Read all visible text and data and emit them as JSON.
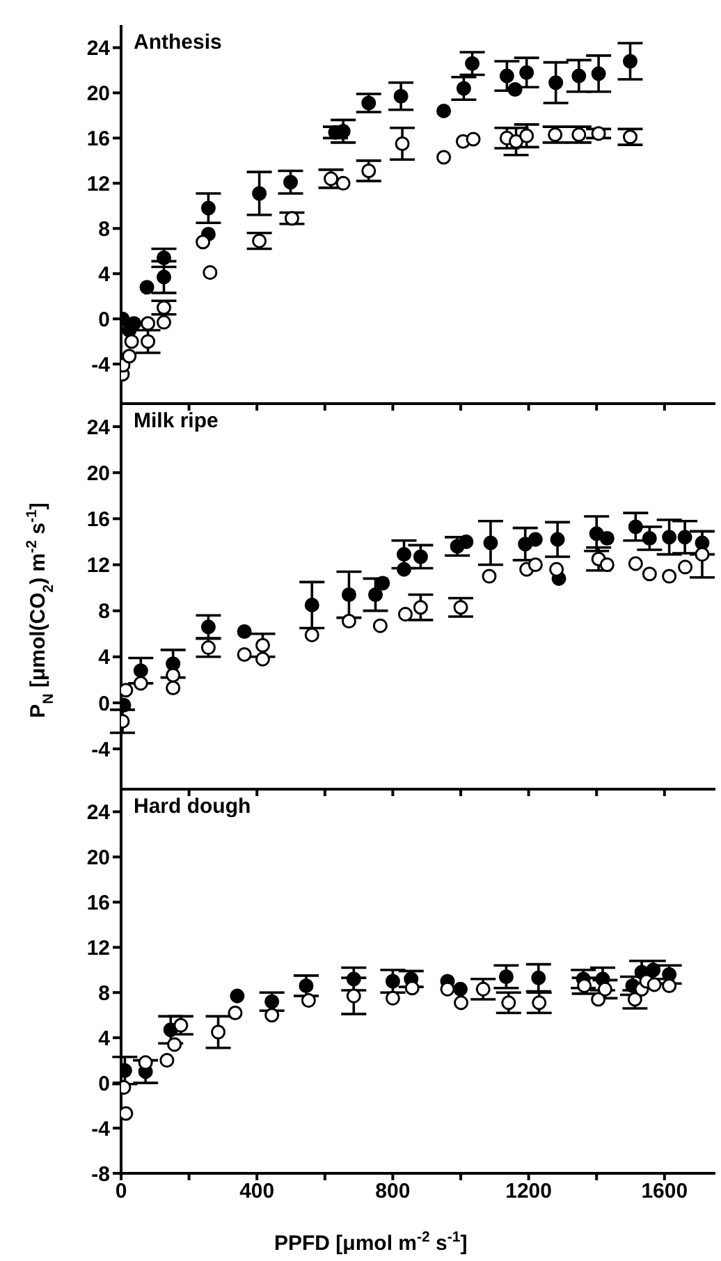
{
  "chart_data": [
    {
      "type": "scatter",
      "title": "Anthesis",
      "marker": "circle",
      "tick_labels": "y",
      "xlim": [
        0,
        1750
      ],
      "xticks": [
        0,
        {
          "value": 200,
          "label": null
        },
        {
          "value": 400,
          "label": null
        },
        {
          "value": 600,
          "label": null
        },
        {
          "value": 800,
          "label": null
        },
        {
          "value": 1000,
          "label": null
        },
        {
          "value": 1200,
          "label": null
        },
        {
          "value": 1400,
          "label": null
        },
        {
          "value": 1600,
          "label": null
        }
      ],
      "ylim": [
        -7.5,
        26
      ],
      "yticks": [
        -4,
        0,
        4,
        8,
        12,
        16,
        20,
        24
      ],
      "series": [
        {
          "color": "#000000",
          "x": [
            4,
            24,
            38,
            76,
            126,
            126,
            257,
            257,
            407,
            499,
            631,
            654,
            729,
            824,
            950,
            1009,
            1034,
            1136,
            1160,
            1194,
            1280,
            1348,
            1406,
            1499
          ],
          "values": [
            0,
            -1,
            -0.4,
            2.8,
            3.7,
            5.4,
            9.8,
            7.5,
            11.1,
            12.1,
            16.5,
            16.6,
            19.1,
            19.7,
            18.4,
            20.4,
            22.6,
            21.5,
            20.3,
            21.8,
            20.9,
            21.5,
            21.7,
            22.8
          ],
          "errors": [
            null,
            null,
            null,
            null,
            1.4,
            0.8,
            1.3,
            null,
            1.9,
            1,
            0.5,
            1,
            0.8,
            1.2,
            null,
            1,
            1,
            1.3,
            null,
            1.3,
            1.8,
            1.4,
            1.6,
            1.6
          ]
        },
        {
          "color": "#ffffff",
          "x": [
            4,
            6,
            24,
            31,
            79,
            79,
            126,
            126,
            241,
            262,
            407,
            503,
            618,
            654,
            729,
            828,
            950,
            1007,
            1037,
            1136,
            1163,
            1194,
            1278,
            1348,
            1406,
            1499
          ],
          "values": [
            -4.9,
            -4.1,
            -3.3,
            -2,
            -2,
            -0.4,
            -0.3,
            1,
            6.8,
            4.1,
            6.9,
            8.9,
            12.4,
            12,
            13.1,
            15.5,
            14.3,
            15.7,
            15.9,
            16,
            15.7,
            16.2,
            16.3,
            16.3,
            16.4,
            16.1
          ],
          "errors": [
            null,
            null,
            null,
            null,
            1,
            null,
            null,
            0.6,
            null,
            null,
            0.7,
            0.5,
            0.8,
            null,
            0.9,
            1.4,
            null,
            null,
            null,
            0.9,
            1.2,
            1,
            0.7,
            0.7,
            0.4,
            0.7
          ]
        }
      ]
    },
    {
      "type": "scatter",
      "title": "Milk ripe",
      "ylabel": "P$_{N}$  [μmol(CO$_{2}$) m$^{-2}$ s$^{-1}$]",
      "marker": "circle",
      "tick_labels": "y",
      "xlim": [
        0,
        1750
      ],
      "xticks": [
        0,
        {
          "value": 200,
          "label": null
        },
        {
          "value": 400,
          "label": null
        },
        {
          "value": 600,
          "label": null
        },
        {
          "value": 800,
          "label": null
        },
        {
          "value": 1000,
          "label": null
        },
        {
          "value": 1200,
          "label": null
        },
        {
          "value": 1400,
          "label": null
        },
        {
          "value": 1600,
          "label": null
        }
      ],
      "ylim": [
        -7.5,
        26
      ],
      "yticks": [
        -4,
        0,
        4,
        8,
        12,
        16,
        20,
        24
      ],
      "series": [
        {
          "color": "#000000",
          "x": [
            8,
            58,
            153,
            257,
            363,
            562,
            671,
            749,
            770,
            833,
            833,
            882,
            990,
            1016,
            1088,
            1190,
            1220,
            1285,
            1289,
            1400,
            1431,
            1515,
            1556,
            1614,
            1660,
            1711
          ],
          "values": [
            -0.2,
            2.8,
            3.4,
            6.6,
            6.2,
            8.5,
            9.4,
            9.4,
            10.4,
            11.6,
            12.9,
            12.7,
            13.6,
            14,
            13.9,
            13.8,
            14.2,
            14.2,
            10.8,
            14.7,
            14.3,
            15.3,
            14.3,
            14.4,
            14.4,
            13.9
          ],
          "errors": [
            null,
            1.1,
            1.2,
            1,
            null,
            2,
            2,
            1.4,
            null,
            null,
            1.2,
            1,
            0.8,
            null,
            1.9,
            1.4,
            null,
            1.5,
            null,
            1.5,
            null,
            1.2,
            1,
            1.5,
            1.4,
            1
          ]
        },
        {
          "color": "#ffffff",
          "x": [
            4,
            14,
            58,
            153,
            153,
            257,
            363,
            417,
            417,
            562,
            671,
            749,
            763,
            837,
            882,
            1000,
            1084,
            1194,
            1220,
            1282,
            1406,
            1431,
            1515,
            1556,
            1614,
            1661,
            1711
          ],
          "values": [
            -1.6,
            1.1,
            1.7,
            1.3,
            2.4,
            4.8,
            4.2,
            3.8,
            5,
            5.9,
            7.1,
            null,
            6.7,
            7.7,
            8.3,
            8.3,
            11,
            11.6,
            12,
            11.6,
            12.5,
            12,
            12.1,
            11.2,
            11,
            11.8,
            12.9
          ],
          "errors": [
            1,
            null,
            null,
            null,
            null,
            0.8,
            null,
            null,
            1,
            null,
            null,
            null,
            null,
            null,
            1.1,
            0.8,
            null,
            null,
            null,
            null,
            1,
            null,
            null,
            null,
            null,
            null,
            2
          ]
        }
      ]
    },
    {
      "type": "scatter",
      "title": "Hard dough",
      "xlabel": "PPFD  [μmol m$^{-2}$ s$^{-1}$]",
      "marker": "circle",
      "xlim": [
        0,
        1750
      ],
      "xticks": [
        0,
        {
          "value": 200,
          "label": null
        },
        400,
        {
          "value": 600,
          "label": null
        },
        800,
        {
          "value": 1000,
          "label": null
        },
        1200,
        {
          "value": 1400,
          "label": null
        },
        1600
      ],
      "ylim": [
        -8,
        26
      ],
      "yticks": [
        -8,
        -4,
        0,
        4,
        8,
        12,
        16,
        20,
        24
      ],
      "series": [
        {
          "color": "#000000",
          "x": [
            11,
            72,
            146,
            342,
            444,
            545,
            685,
            800,
            854,
            961,
            999,
            1134,
            1229,
            1361,
            1418,
            1506,
            1533,
            1567,
            1614
          ],
          "values": [
            1.1,
            1,
            4.7,
            7.7,
            7.2,
            8.6,
            9.2,
            9,
            9.2,
            9,
            8.3,
            9.4,
            9.3,
            9.2,
            9.2,
            8.6,
            9.8,
            10,
            9.6
          ],
          "errors": [
            1.2,
            1,
            1.2,
            null,
            0.8,
            0.9,
            1,
            1,
            0.7,
            null,
            null,
            1,
            1.2,
            0.8,
            1,
            0.8,
            1,
            0.8,
            0.8
          ]
        },
        {
          "color": "#ffffff",
          "x": [
            8,
            11,
            14,
            72,
            135,
            157,
            176,
            286,
            336,
            444,
            552,
            685,
            800,
            857,
            961,
            1001,
            1066,
            1141,
            1231,
            1364,
            1405,
            1425,
            1513,
            1533,
            1547,
            1570,
            1614
          ],
          "values": [
            -0.4,
            null,
            -2.7,
            1.8,
            2,
            3.4,
            5.1,
            4.5,
            6.2,
            6,
            7.3,
            7.7,
            7.5,
            8.4,
            8.3,
            7.1,
            8.3,
            7.1,
            7.1,
            8.6,
            7.4,
            8.3,
            7.4,
            8.3,
            9,
            8.7,
            8.6
          ],
          "errors": [
            null,
            null,
            null,
            null,
            null,
            null,
            0.8,
            1.4,
            null,
            null,
            null,
            1.6,
            null,
            null,
            null,
            null,
            0.9,
            0.9,
            0.9,
            0.7,
            null,
            0.8,
            0.8,
            null,
            null,
            null,
            null
          ]
        }
      ]
    }
  ]
}
